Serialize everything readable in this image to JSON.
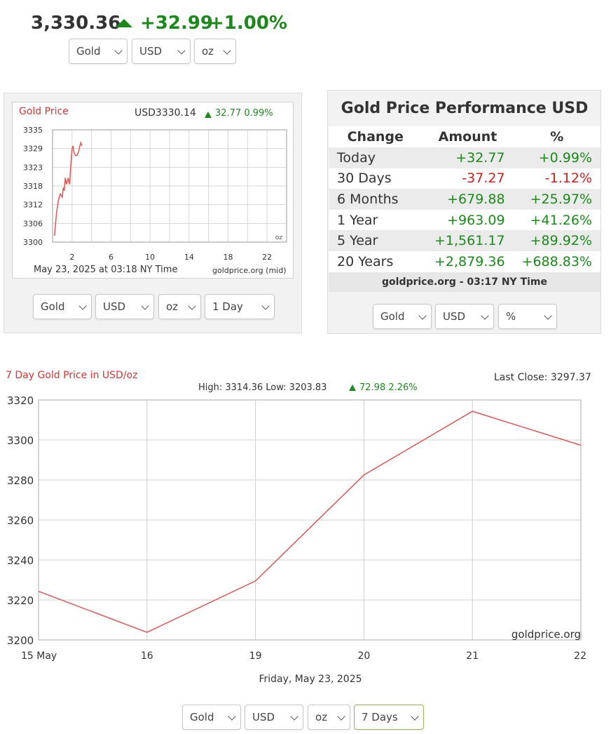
{
  "header": {
    "price": "3,330.36",
    "change": "+32.99",
    "change_pct": "+1.00%",
    "arrow_icon": "triangle-up-icon"
  },
  "top_selectors": {
    "metal": "Gold",
    "currency": "USD",
    "unit": "oz"
  },
  "mini_chart_panel": {
    "selectors": {
      "metal": "Gold",
      "currency": "USD",
      "unit": "oz",
      "range": "1 Day"
    }
  },
  "performance": {
    "title": "Gold Price Performance USD",
    "headers": [
      "Change",
      "Amount",
      "%"
    ],
    "rows": [
      {
        "label": "Today",
        "amount": "+32.77",
        "pct": "+0.99%"
      },
      {
        "label": "30 Days",
        "amount": "-37.27",
        "pct": "-1.12%"
      },
      {
        "label": "6 Months",
        "amount": "+679.88",
        "pct": "+25.97%"
      },
      {
        "label": "1 Year",
        "amount": "+963.09",
        "pct": "+41.26%"
      },
      {
        "label": "5 Year",
        "amount": "+1,561.17",
        "pct": "+89.92%"
      },
      {
        "label": "20 Years",
        "amount": "+2,879.36",
        "pct": "+688.83%"
      }
    ],
    "footer": "goldprice.org - 03:17 NY Time",
    "selectors": {
      "metal": "Gold",
      "currency": "USD",
      "mode": "%"
    }
  },
  "week_selectors": {
    "metal": "Gold",
    "currency": "USD",
    "unit": "oz",
    "range": "7 Days"
  },
  "colors": {
    "up": "#1a8a1a",
    "down": "#cc1f1f",
    "line": "#e05555"
  },
  "chart_data": [
    {
      "type": "line",
      "title": "Gold Price",
      "quote": "USD3330.14",
      "change": "32.77",
      "change_pct": "0.99%",
      "x_ticks": [
        "2",
        "6",
        "10",
        "14",
        "18",
        "22"
      ],
      "y_ticks": [
        "3335",
        "3329",
        "3323",
        "3318",
        "3312",
        "3306",
        "3300"
      ],
      "unit_label": "oz",
      "date_label": "May 23, 2025 at 03:18 NY Time",
      "source": "goldprice.org (mid)",
      "xlim": [
        0,
        24
      ],
      "ylim": [
        3300,
        3335
      ],
      "x": [
        0.2,
        0.4,
        0.6,
        0.8,
        1.0,
        1.1,
        1.2,
        1.3,
        1.45,
        1.6,
        1.75,
        1.9,
        2.0,
        2.1,
        2.2,
        2.35,
        2.5,
        2.65,
        2.8,
        2.9,
        3.0
      ],
      "values": [
        3302,
        3309,
        3313,
        3315,
        3314,
        3317,
        3316,
        3320,
        3318,
        3320,
        3318,
        3325,
        3329,
        3330,
        3328,
        3327,
        3327,
        3328,
        3330,
        3331,
        3330
      ]
    },
    {
      "type": "line",
      "title": "7 Day Gold Price in USD/oz",
      "stats": "High: 3314.36 Low: 3203.83",
      "stats_change": "72.98 2.26%",
      "last_close": "Last Close: 3297.37",
      "categories": [
        "15 May",
        "16",
        "19",
        "20",
        "21",
        "22"
      ],
      "values": [
        3224.3,
        3203.83,
        3229.5,
        3282.5,
        3314.36,
        3297.37
      ],
      "y_ticks": [
        "3320",
        "3300",
        "3280",
        "3260",
        "3240",
        "3220",
        "3200"
      ],
      "ylim": [
        3200,
        3320
      ],
      "xlabel": "Friday, May 23, 2025",
      "source": "goldprice.org"
    }
  ]
}
